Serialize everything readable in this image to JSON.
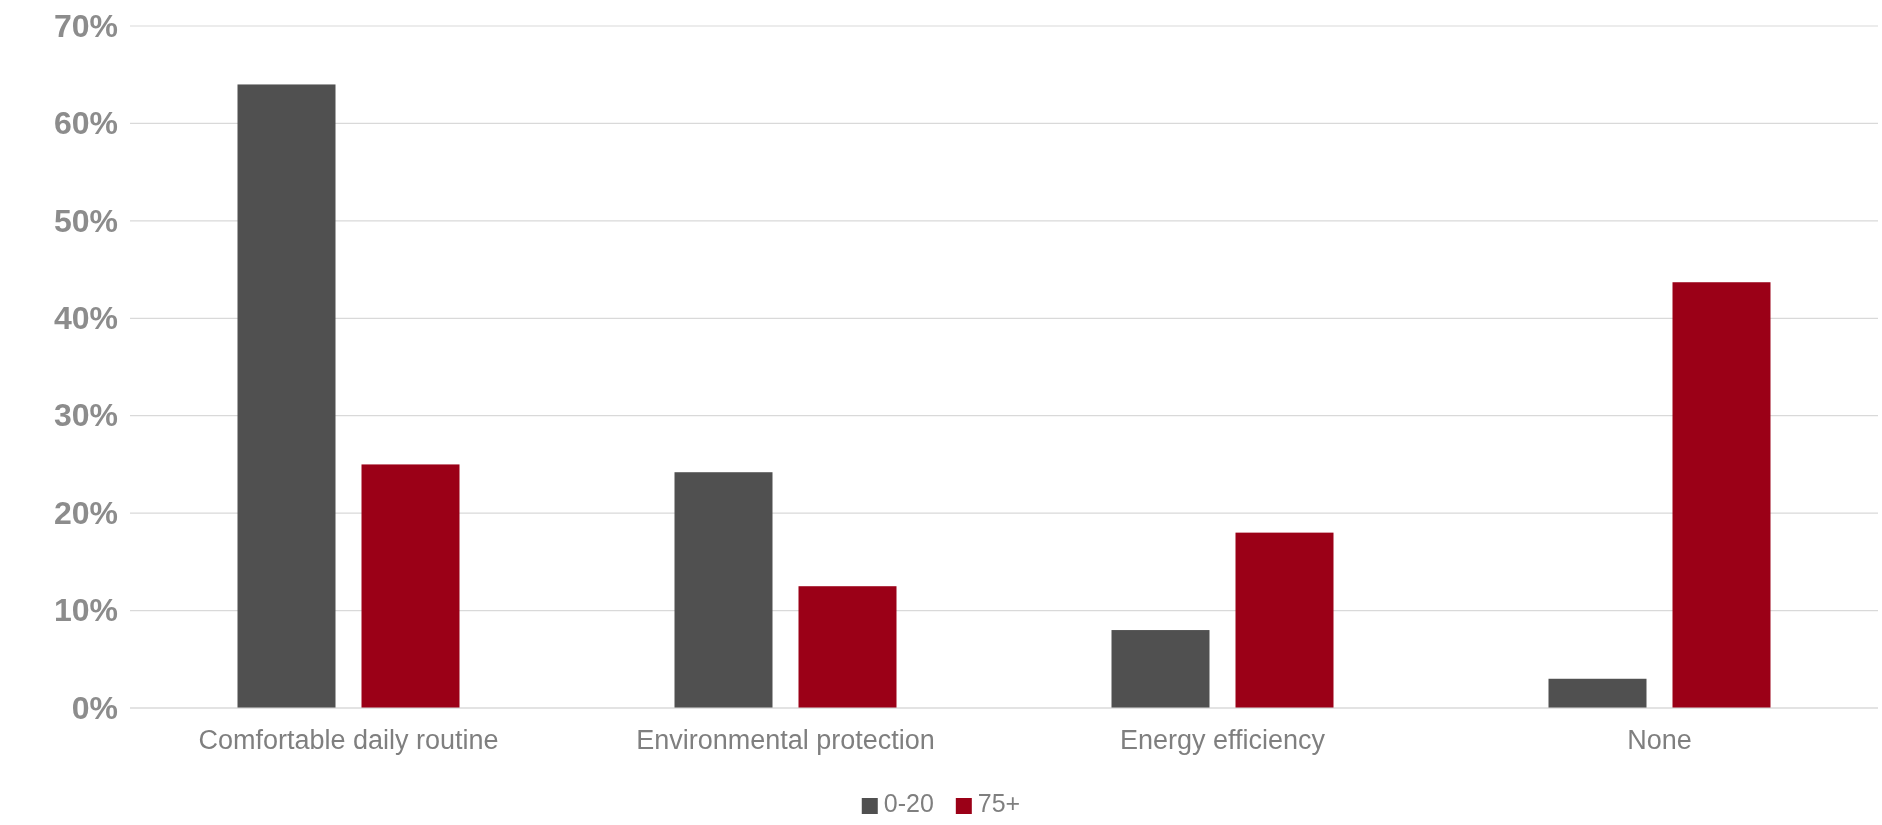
{
  "chart_data": {
    "type": "bar",
    "categories": [
      "Comfortable daily routine",
      "Environmental protection",
      "Energy efficiency",
      "None"
    ],
    "series": [
      {
        "name": "0-20",
        "color": "#505050",
        "values": [
          64,
          24.2,
          8,
          3
        ]
      },
      {
        "name": "75+",
        "color": "#9b0017",
        "values": [
          25,
          12.5,
          18,
          43.7
        ]
      }
    ],
    "ylim": [
      0,
      70
    ],
    "yticks": [
      {
        "value": 0,
        "label": "0%"
      },
      {
        "value": 10,
        "label": "10%"
      },
      {
        "value": 20,
        "label": "20%"
      },
      {
        "value": 30,
        "label": "30%"
      },
      {
        "value": 40,
        "label": "40%"
      },
      {
        "value": 50,
        "label": "50%"
      },
      {
        "value": 60,
        "label": "60%"
      },
      {
        "value": 70,
        "label": "70%"
      }
    ],
    "grid": "y",
    "legend": "bottom"
  }
}
